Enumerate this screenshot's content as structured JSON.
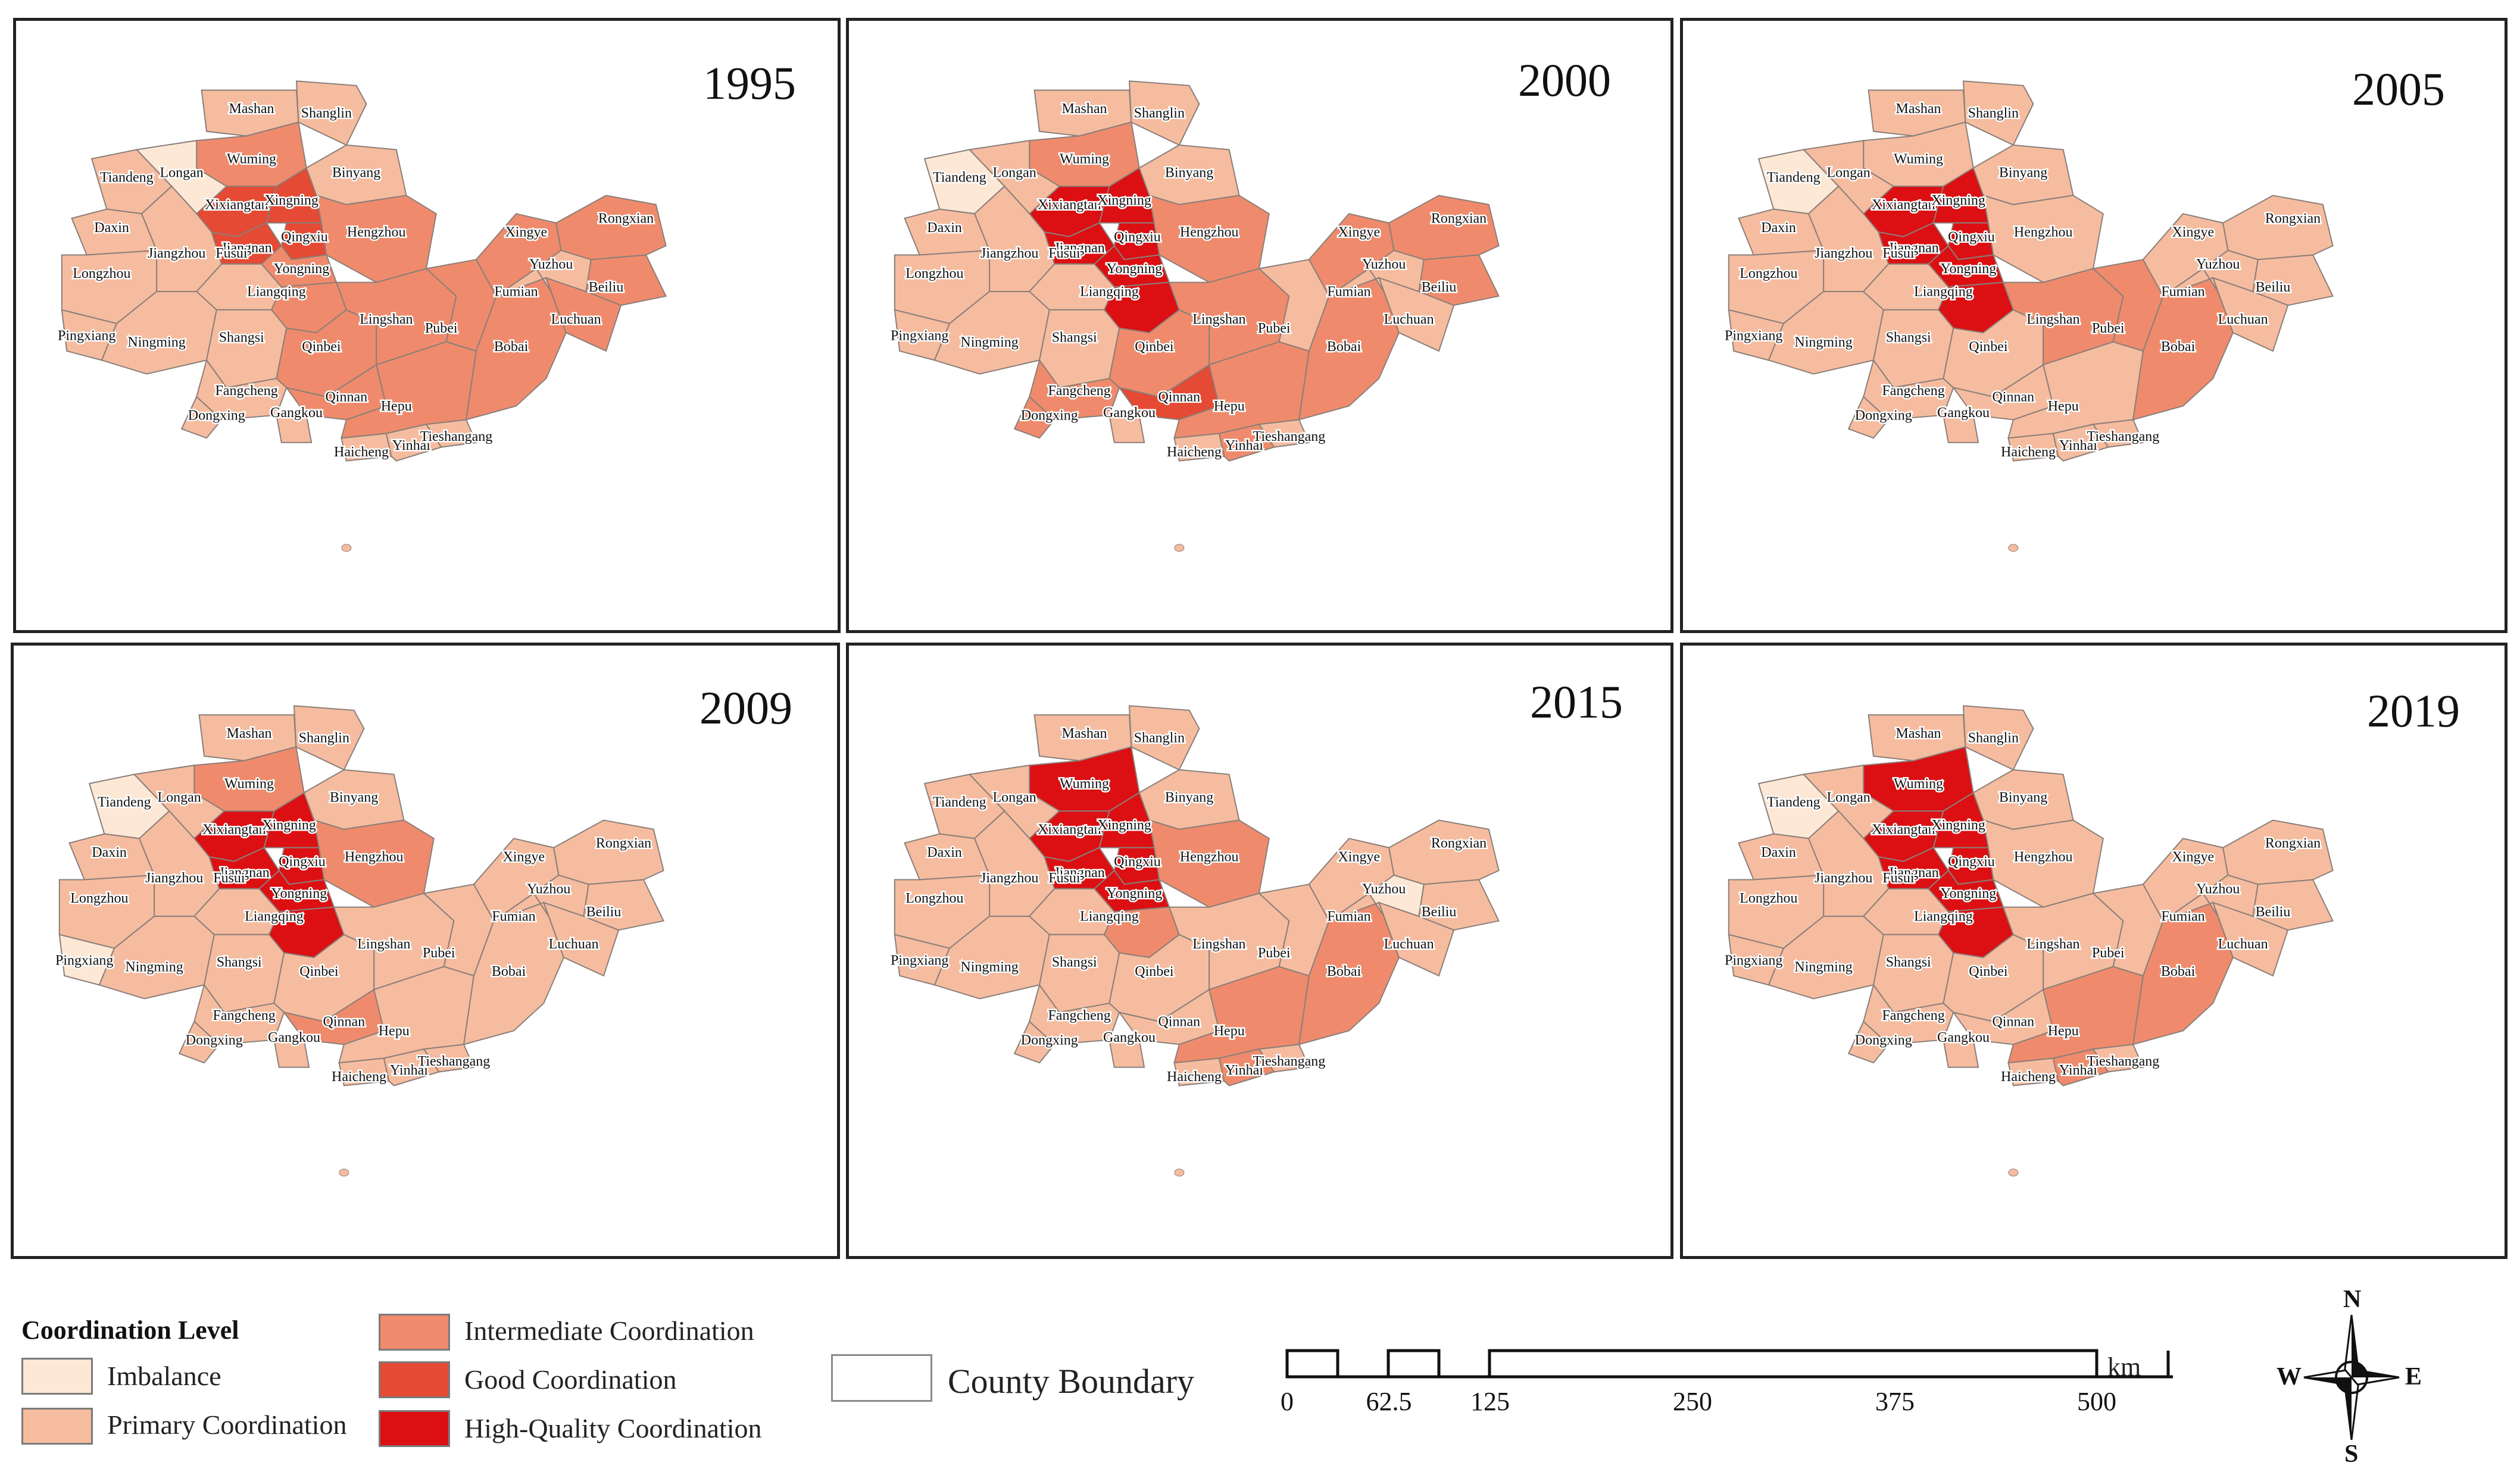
{
  "colors": {
    "Imbalance": "#fde8d6",
    "Primary Coordination": "#f6bc9f",
    "Intermediate Coordination": "#ef8b6c",
    "Good Coordination": "#e54a34",
    "High-Quality Coordination": "#dc0f12",
    "boundary": "#8a7f7a"
  },
  "counties": [
    "Mashan",
    "Shanglin",
    "Wuming",
    "Binyang",
    "Tiandeng",
    "Longan",
    "Xixiangtan",
    "Xingning",
    "Qingxiu",
    "Hengzhou",
    "Daxin",
    "Jiangnan",
    "Yongning",
    "Jiangzhou",
    "Fusui",
    "Liangqing",
    "Longzhou",
    "Pingxiang",
    "Ningming",
    "Shangsi",
    "Qinbei",
    "Lingshan",
    "Pubei",
    "Fangcheng",
    "Qinnan",
    "Dongxing",
    "Gangkou",
    "Haicheng",
    "Yinhai",
    "Tieshangang",
    "Hepu",
    "Bobai",
    "Xingye",
    "Yuzhou",
    "Fumian",
    "Luchuan",
    "Beiliu",
    "Rongxian"
  ],
  "panels": [
    {
      "year": "1995",
      "levels": {
        "Tiandeng": "Primary Coordination",
        "Longan": "Imbalance",
        "Wuming": "Intermediate Coordination",
        "Xixiangtan": "Good Coordination",
        "Xingning": "Good Coordination",
        "Qingxiu": "Good Coordination",
        "Jiangnan": "Good Coordination",
        "Yongning": "Intermediate Coordination",
        "Liangqing": "Intermediate Coordination",
        "Hengzhou": "Intermediate Coordination",
        "Lingshan": "Intermediate Coordination",
        "Qinbei": "Intermediate Coordination",
        "Qinnan": "Intermediate Coordination",
        "Hepu": "Intermediate Coordination",
        "Bobai": "Intermediate Coordination",
        "Xingye": "Intermediate Coordination",
        "Rongxian": "Intermediate Coordination",
        "Beiliu": "Intermediate Coordination",
        "Pubei": "Intermediate Coordination",
        "Luchuan": "Intermediate Coordination"
      }
    },
    {
      "year": "2000",
      "levels": {
        "Tiandeng": "Imbalance",
        "Wuming": "Intermediate Coordination",
        "Xixiangtan": "High-Quality Coordination",
        "Xingning": "High-Quality Coordination",
        "Qingxiu": "High-Quality Coordination",
        "Jiangnan": "High-Quality Coordination",
        "Yongning": "High-Quality Coordination",
        "Liangqing": "High-Quality Coordination",
        "Hengzhou": "Intermediate Coordination",
        "Qinbei": "Intermediate Coordination",
        "Qinnan": "Good Coordination",
        "Hepu": "Intermediate Coordination",
        "Bobai": "Intermediate Coordination",
        "Xingye": "Intermediate Coordination",
        "Beiliu": "Intermediate Coordination",
        "Rongxian": "Intermediate Coordination",
        "Fangcheng": "Intermediate Coordination",
        "Dongxing": "Intermediate Coordination",
        "Lingshan": "Intermediate Coordination",
        "Yinhai": "Intermediate Coordination"
      }
    },
    {
      "year": "2005",
      "levels": {
        "Tiandeng": "Imbalance",
        "Xixiangtan": "High-Quality Coordination",
        "Xingning": "High-Quality Coordination",
        "Qingxiu": "High-Quality Coordination",
        "Jiangnan": "High-Quality Coordination",
        "Yongning": "High-Quality Coordination",
        "Liangqing": "High-Quality Coordination",
        "Lingshan": "Intermediate Coordination",
        "Pubei": "Intermediate Coordination",
        "Bobai": "Intermediate Coordination"
      }
    },
    {
      "year": "2009",
      "levels": {
        "Tiandeng": "Imbalance",
        "Wuming": "Intermediate Coordination",
        "Xixiangtan": "High-Quality Coordination",
        "Xingning": "High-Quality Coordination",
        "Qingxiu": "High-Quality Coordination",
        "Jiangnan": "High-Quality Coordination",
        "Yongning": "High-Quality Coordination",
        "Liangqing": "High-Quality Coordination",
        "Hengzhou": "Intermediate Coordination",
        "Qinnan": "Intermediate Coordination",
        "Pingxiang": "Imbalance"
      }
    },
    {
      "year": "2015",
      "levels": {
        "Wuming": "High-Quality Coordination",
        "Xixiangtan": "High-Quality Coordination",
        "Xingning": "High-Quality Coordination",
        "Qingxiu": "High-Quality Coordination",
        "Jiangnan": "High-Quality Coordination",
        "Yongning": "High-Quality Coordination",
        "Liangqing": "Intermediate Coordination",
        "Hengzhou": "Intermediate Coordination",
        "Bobai": "Intermediate Coordination",
        "Hepu": "Intermediate Coordination",
        "Yinhai": "Intermediate Coordination",
        "Yuzhou": "Imbalance"
      }
    },
    {
      "year": "2019",
      "levels": {
        "Tiandeng": "Imbalance",
        "Wuming": "High-Quality Coordination",
        "Xixiangtan": "High-Quality Coordination",
        "Xingning": "High-Quality Coordination",
        "Qingxiu": "High-Quality Coordination",
        "Jiangnan": "High-Quality Coordination",
        "Yongning": "High-Quality Coordination",
        "Liangqing": "High-Quality Coordination",
        "Bobai": "Intermediate Coordination",
        "Hepu": "Intermediate Coordination",
        "Yinhai": "Intermediate Coordination"
      }
    }
  ],
  "legend": {
    "title": "Coordination Level",
    "items": [
      "Imbalance",
      "Primary Coordination",
      "Intermediate Coordination",
      "Good Coordination",
      "High-Quality Coordination"
    ],
    "boundary_label": "County Boundary"
  },
  "scale_bar": {
    "unit": "km",
    "ticks": [
      "0",
      "62.5",
      "125",
      "250",
      "375",
      "500"
    ]
  },
  "compass": {
    "N": "N",
    "S": "S",
    "E": "E",
    "W": "W"
  }
}
